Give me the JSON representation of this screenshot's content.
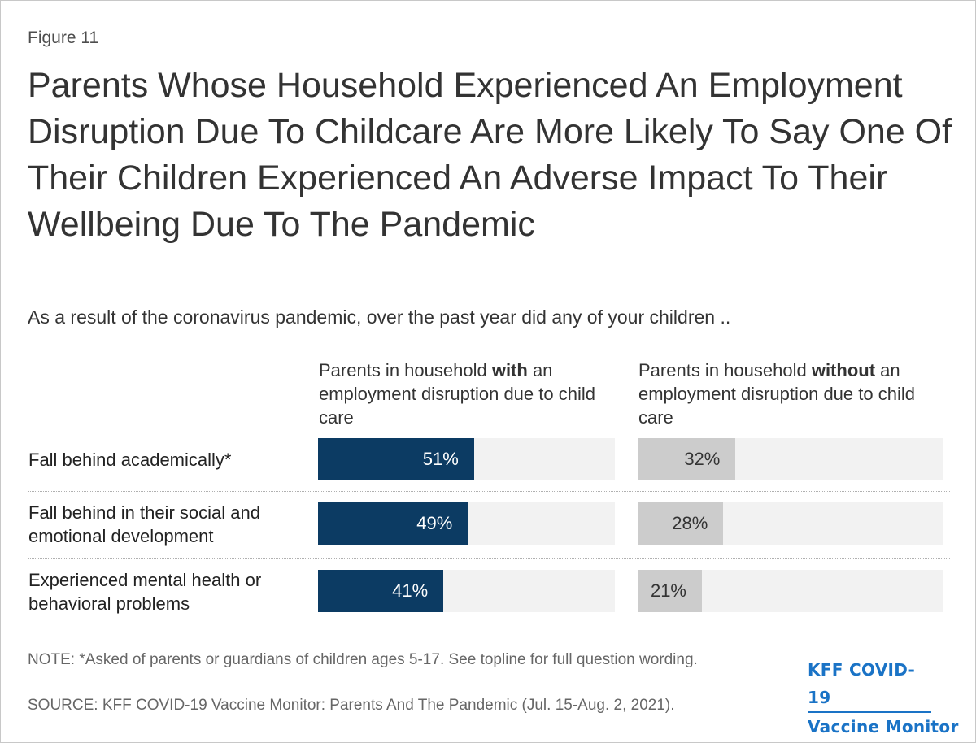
{
  "figure_label": "Figure 11",
  "chart_data": {
    "type": "bar",
    "title": "Parents Whose Household Experienced An Employment Disruption Due To Childcare Are More Likely To Say One Of Their Children Experienced An Adverse Impact To Their Wellbeing Due To The Pandemic",
    "subtitle": "As a result of the coronavirus pandemic, over the past year did any of your children ..",
    "categories": [
      "Fall behind academically*",
      "Fall behind in their social and emotional development",
      "Experienced mental health or behavioral problems"
    ],
    "series": [
      {
        "name": "Parents in household with an employment disruption due to child care",
        "label_pre": "Parents in household ",
        "label_bold": "with",
        "label_post": " an employment disruption due to child care",
        "values": [
          51,
          49,
          41
        ],
        "labels": [
          "51%",
          "49%",
          "41%"
        ],
        "color": "#0c3b63"
      },
      {
        "name": "Parents in household without an employment disruption due to child care",
        "label_pre": "Parents in household ",
        "label_bold": "without",
        "label_post": " an employment disruption due to child care",
        "values": [
          32,
          28,
          21
        ],
        "labels": [
          "32%",
          "28%",
          "21%"
        ],
        "color": "#cccccc"
      }
    ],
    "xlim": [
      0,
      100
    ]
  },
  "note": "NOTE: *Asked of parents or guardians of children ages 5-17. See topline for full question wording.",
  "source": "SOURCE: KFF COVID-19 Vaccine Monitor: Parents And The Pandemic (Jul. 15-Aug. 2, 2021).",
  "logo": {
    "line1": "KFF COVID-19",
    "line2": "Vaccine Monitor",
    "color": "#1a73c6"
  }
}
